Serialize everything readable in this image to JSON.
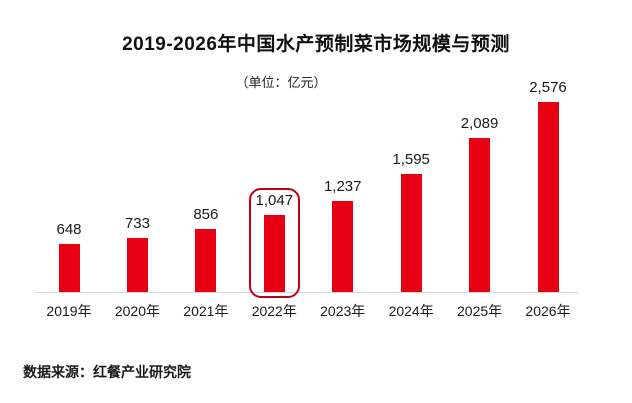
{
  "header": {
    "title": "2019-2026年中国水产预制菜市场规模与预测",
    "unit_label": "（单位：亿元）"
  },
  "footer": {
    "source": "数据来源：红餐产业研究院"
  },
  "colors": {
    "bar": "#e60012",
    "highlight_border": "#c00018",
    "axis_line": "#d9d9d9",
    "text": "#1a1a1a"
  },
  "chart_data": {
    "type": "bar",
    "title": "2019-2026年中国水产预制菜市场规模与预测",
    "subtitle": "（单位：亿元）",
    "categories": [
      "2019年",
      "2020年",
      "2021年",
      "2022年",
      "2023年",
      "2024年",
      "2025年",
      "2026年"
    ],
    "values": [
      648,
      733,
      856,
      1047,
      1237,
      1595,
      2089,
      2576
    ],
    "value_labels": [
      "648",
      "733",
      "856",
      "1,047",
      "1,237",
      "1,595",
      "2,089",
      "2,576"
    ],
    "highlighted_index": 3,
    "highlighted_category": "2022年",
    "unit": "亿元",
    "ylim": [
      0,
      2576
    ],
    "grid": false,
    "legend": false,
    "bar_color": "#e60012",
    "source": "数据来源：红餐产业研究院"
  }
}
